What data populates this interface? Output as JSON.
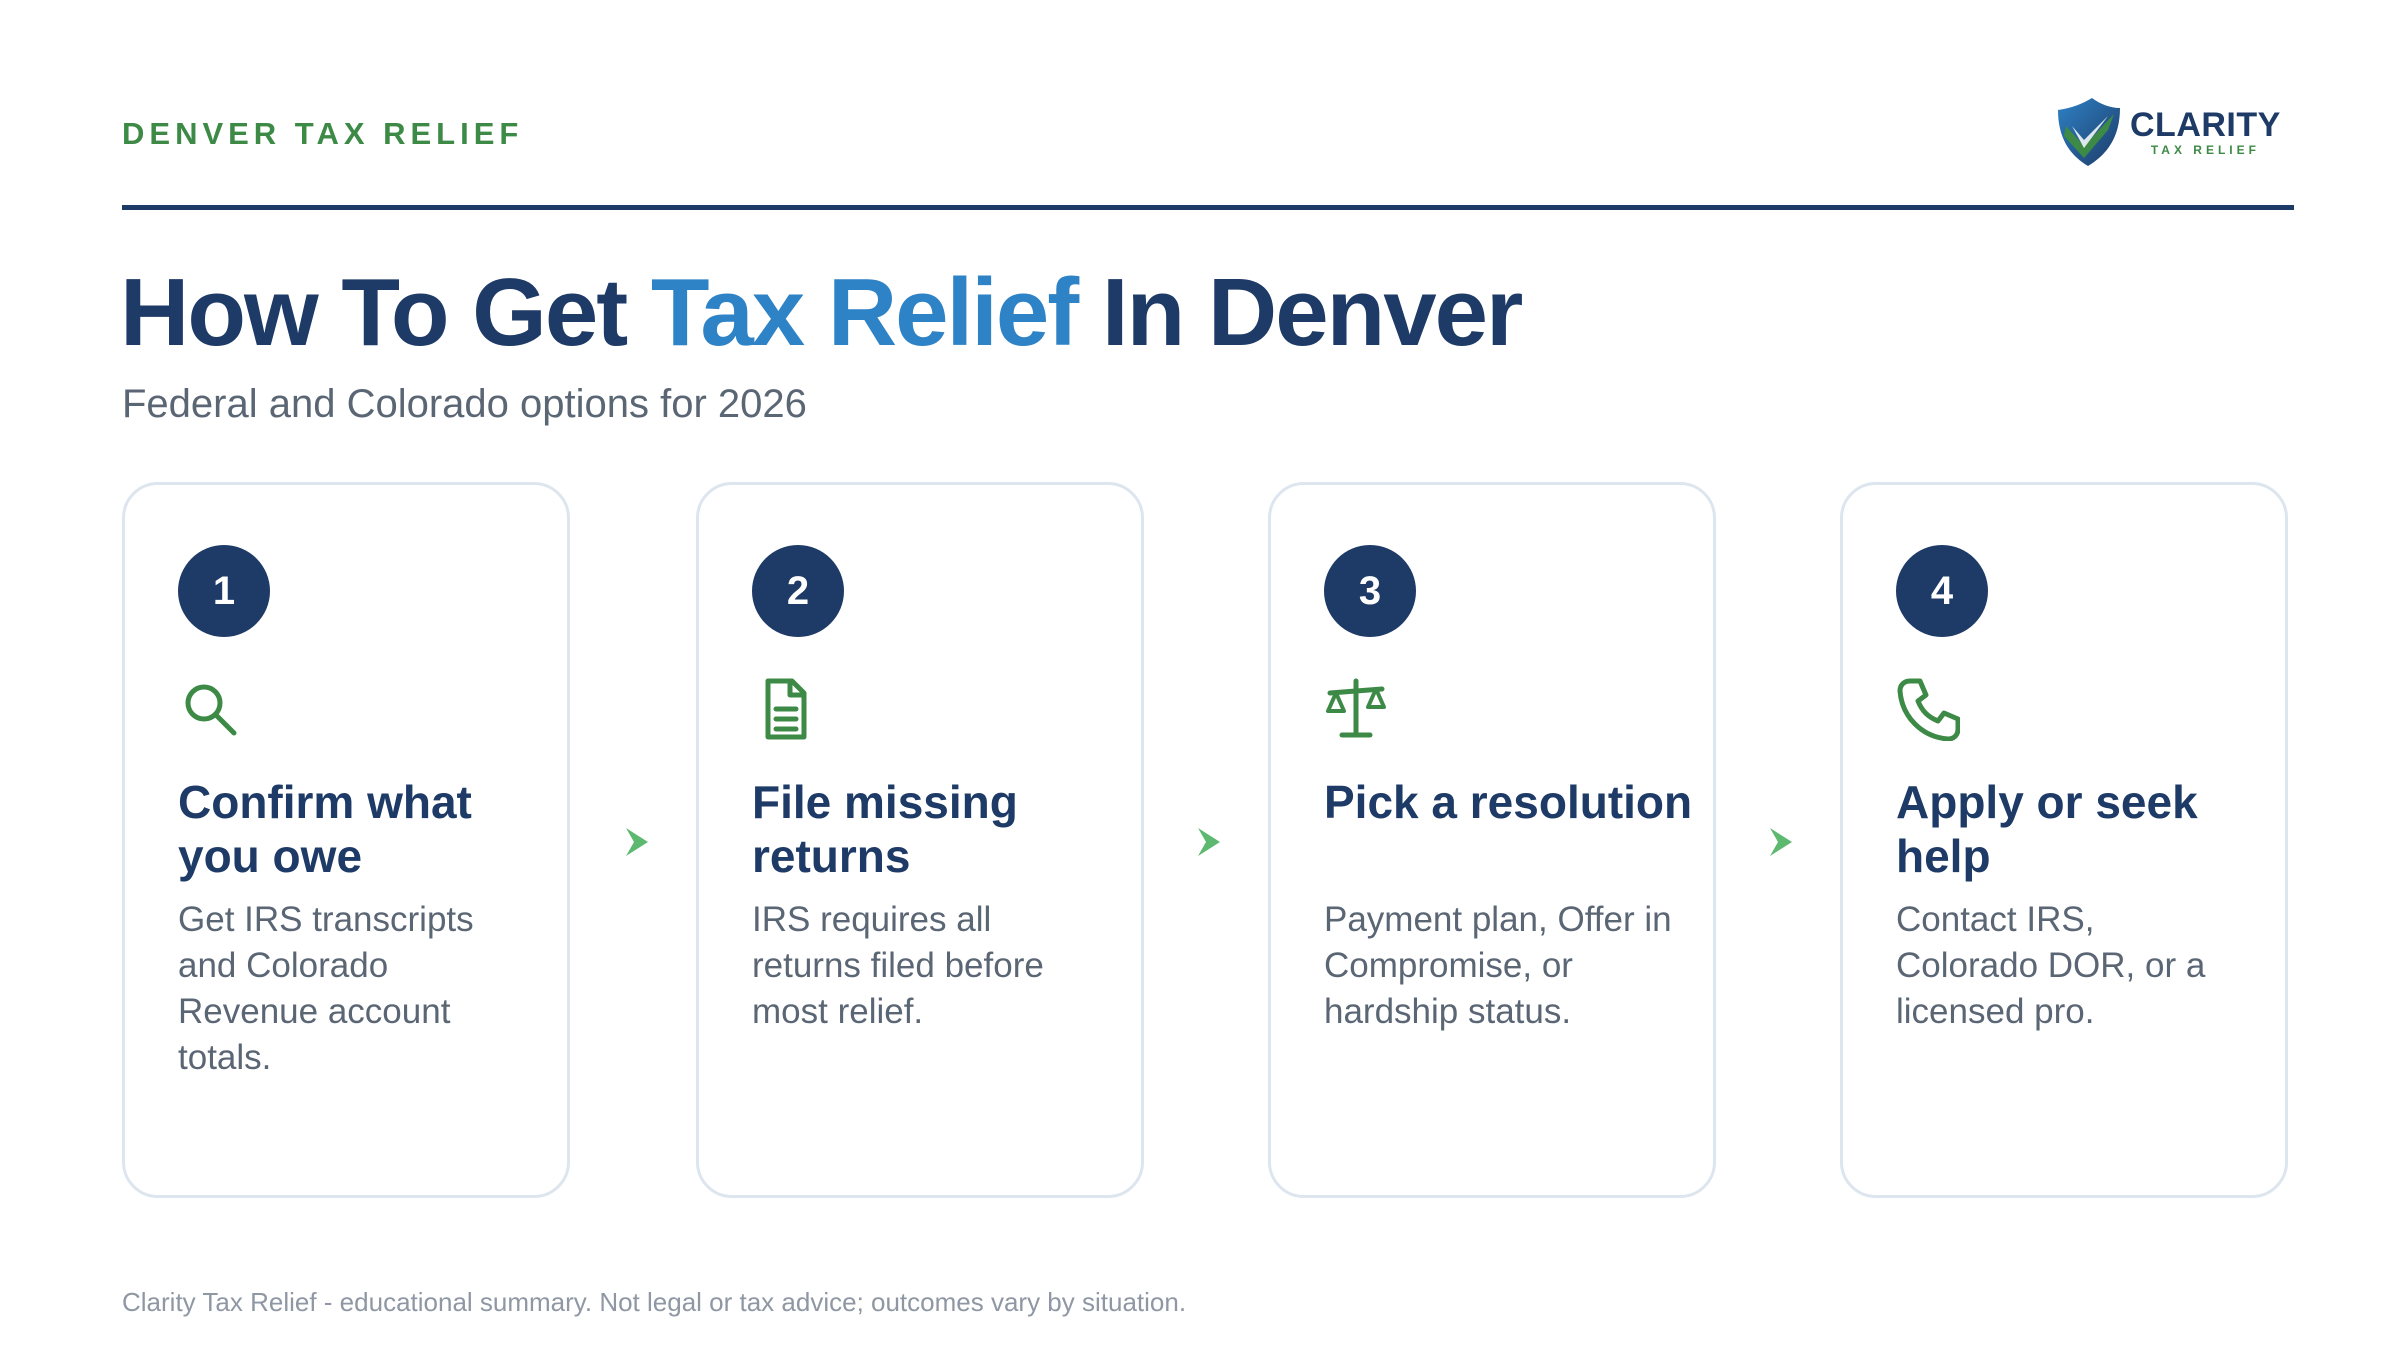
{
  "header": {
    "eyebrow": "DENVER TAX RELIEF",
    "logo": {
      "name": "CLARITY",
      "tagline": "TAX RELIEF"
    }
  },
  "title": {
    "before": "How To Get ",
    "accent": "Tax Relief",
    "after": " In Denver"
  },
  "subtitle": "Federal and Colorado options for 2026",
  "steps": [
    {
      "number": "1",
      "icon": "search-icon",
      "title": "Confirm what you owe",
      "description": "Get IRS transcripts and Colorado Revenue account totals."
    },
    {
      "number": "2",
      "icon": "document-icon",
      "title": "File missing returns",
      "description": "IRS requires all returns filed before most relief."
    },
    {
      "number": "3",
      "icon": "scale-icon",
      "title": "Pick a resolution",
      "description": "Payment plan, Offer in Compromise, or hardship status."
    },
    {
      "number": "4",
      "icon": "phone-icon",
      "title": "Apply or seek help",
      "description": "Contact IRS, Colorado DOR, or a licensed pro."
    }
  ],
  "footer": "Clarity Tax Relief - educational summary. Not legal or tax advice; outcomes vary by situation.",
  "colors": {
    "navy": "#1e3a66",
    "blue_accent": "#2e82c6",
    "green": "#3d8a46",
    "arrow_green": "#5db870",
    "card_border": "#dde6ee"
  }
}
